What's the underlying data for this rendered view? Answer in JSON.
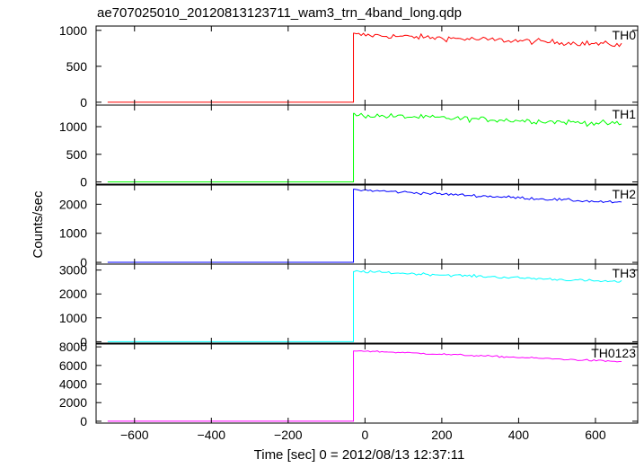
{
  "chart_data": {
    "type": "line",
    "title": "ae707025010_20120813123711_wam3_trn_4band_long.qdp",
    "xlabel": "Time [sec] 0 = 2012/08/13 12:37:11",
    "ylabel": "Counts/sec",
    "xlim": [
      -700,
      710
    ],
    "x_ticks": [
      -600,
      -400,
      -200,
      0,
      200,
      400,
      600
    ],
    "x_tick_labels": [
      "−600",
      "−400",
      "−200",
      "0",
      "200",
      "400",
      "600"
    ],
    "grid": false,
    "x_start": -670,
    "x_end": 670,
    "x_step": 6,
    "step_time": -30,
    "series": [
      {
        "name": "TH0",
        "color": "#ff0000",
        "ylim": [
          -40,
          1060
        ],
        "yticks": [
          0,
          500,
          1000
        ],
        "pre_level": 0,
        "post_start": 940,
        "post_end": 800,
        "noise": 40
      },
      {
        "name": "TH1",
        "color": "#00ff00",
        "ylim": [
          -40,
          1390
        ],
        "yticks": [
          0,
          500,
          1000
        ],
        "pre_level": 0,
        "post_start": 1210,
        "post_end": 1050,
        "noise": 50
      },
      {
        "name": "TH2",
        "color": "#0000ff",
        "ylim": [
          -60,
          2660
        ],
        "yticks": [
          0,
          1000,
          2000
        ],
        "pre_level": 0,
        "post_start": 2500,
        "post_end": 2050,
        "noise": 50
      },
      {
        "name": "TH3",
        "color": "#00ffff",
        "ylim": [
          -60,
          3250
        ],
        "yticks": [
          0,
          1000,
          2000,
          3000
        ],
        "pre_level": 0,
        "post_start": 2950,
        "post_end": 2500,
        "noise": 55
      },
      {
        "name": "TH0123",
        "color": "#ff00ff",
        "ylim": [
          -200,
          8300
        ],
        "yticks": [
          0,
          2000,
          4000,
          6000,
          8000
        ],
        "pre_level": 0,
        "post_start": 7600,
        "post_end": 6400,
        "noise": 90
      }
    ]
  }
}
